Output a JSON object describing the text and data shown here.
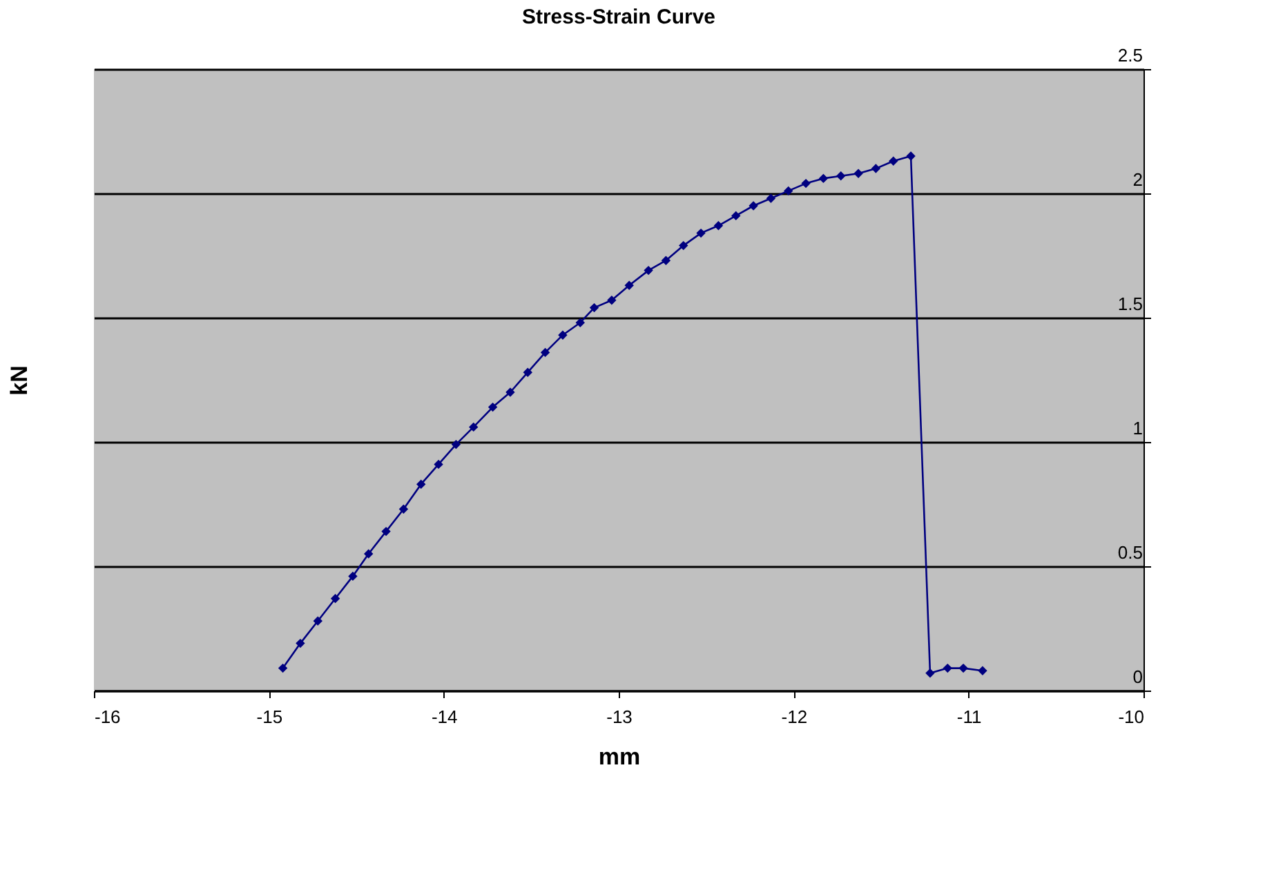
{
  "chart_data": {
    "type": "line",
    "title": "Stress-Strain Curve",
    "xlabel": "mm",
    "ylabel": "kN",
    "xlim": [
      -16,
      -10
    ],
    "xticks": [
      -16,
      -15,
      -14,
      -13,
      -12,
      -11,
      -10
    ],
    "ylim": [
      0,
      2.5
    ],
    "yticks": [
      0,
      0.5,
      1,
      1.5,
      2,
      2.5
    ],
    "grid": "y",
    "marker": "diamond",
    "line_style": "solid",
    "legend": false,
    "series": [
      {
        "color": "#000080",
        "x": [
          -14.92,
          -14.82,
          -14.72,
          -14.62,
          -14.52,
          -14.43,
          -14.33,
          -14.23,
          -14.13,
          -14.03,
          -13.93,
          -13.83,
          -13.72,
          -13.62,
          -13.52,
          -13.42,
          -13.32,
          -13.22,
          -13.14,
          -13.04,
          -12.94,
          -12.83,
          -12.73,
          -12.63,
          -12.53,
          -12.43,
          -12.33,
          -12.23,
          -12.13,
          -12.03,
          -11.93,
          -11.83,
          -11.73,
          -11.63,
          -11.53,
          -11.43,
          -11.33,
          -11.22,
          -11.12,
          -11.03,
          -10.92
        ],
        "values": [
          0.09,
          0.19,
          0.28,
          0.37,
          0.46,
          0.55,
          0.64,
          0.73,
          0.83,
          0.91,
          0.99,
          1.06,
          1.14,
          1.2,
          1.28,
          1.36,
          1.43,
          1.48,
          1.54,
          1.57,
          1.63,
          1.69,
          1.73,
          1.79,
          1.84,
          1.87,
          1.91,
          1.95,
          1.98,
          2.01,
          2.04,
          2.06,
          2.07,
          2.08,
          2.1,
          2.13,
          2.15,
          0.07,
          0.09,
          0.09,
          0.08
        ]
      }
    ]
  }
}
